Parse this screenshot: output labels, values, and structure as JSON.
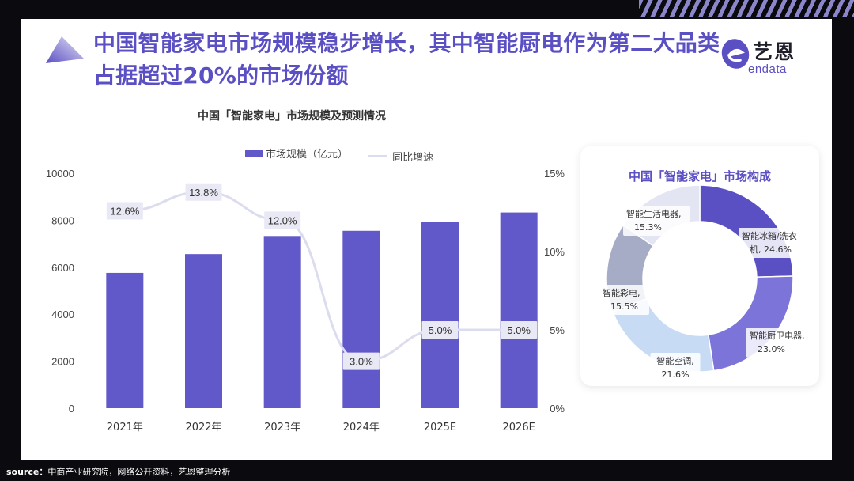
{
  "title": "中国智能家电市场规模稳步增长，其中智能厨电作为第二大品类占据超过20%的市场份额",
  "brand": {
    "name": "艺恩",
    "sub": "endata"
  },
  "colors": {
    "bar": "#6158c9",
    "line": "#dcdcef",
    "title": "#5b4fc4"
  },
  "source_label": "source：",
  "source_text": "中商产业研究院，网络公开资料，艺恩整理分析",
  "chart_data": [
    {
      "type": "bar",
      "title": "中国「智能家电」市场规模及预测情况",
      "categories": [
        "2021年",
        "2022年",
        "2023年",
        "2024年",
        "2025E",
        "2026E"
      ],
      "series": [
        {
          "name": "市场规模（亿元）",
          "type": "bar",
          "axis": "left",
          "values": [
            5760,
            6560,
            7330,
            7550,
            7930,
            8330
          ]
        },
        {
          "name": "同比增速",
          "type": "line",
          "axis": "right",
          "values": [
            12.6,
            13.8,
            12.0,
            3.0,
            5.0,
            5.0
          ],
          "labels": [
            "12.6%",
            "13.8%",
            "12.0%",
            "3.0%",
            "5.0%",
            "5.0%"
          ]
        }
      ],
      "ylim": [
        0,
        10000
      ],
      "yticks": [
        "10000",
        "8000",
        "6000",
        "4000",
        "2000",
        "0"
      ],
      "y2lim": [
        0,
        15
      ],
      "y2ticks": [
        "15%",
        "10%",
        "5%",
        "0%"
      ],
      "grid": false,
      "legend": "top"
    },
    {
      "type": "pie",
      "title": "中国「智能家电」市场构成",
      "slices": [
        {
          "label_1": "智能冰箱/洗衣",
          "label_2": "机, 24.6%",
          "value": 24.6,
          "color": "#5a50c4"
        },
        {
          "label_1": "智能厨卫电器,",
          "label_2": "23.0%",
          "value": 23.0,
          "color": "#7c74d9"
        },
        {
          "label_1": "智能空调,",
          "label_2": "21.6%",
          "value": 21.6,
          "color": "#c7dcf4"
        },
        {
          "label_1": "智能彩电,",
          "label_2": "15.5%",
          "value": 15.5,
          "color": "#a6acc6"
        },
        {
          "label_1": "智能生活电器,",
          "label_2": "15.3%",
          "value": 15.3,
          "color": "#e3e5f3"
        }
      ]
    }
  ]
}
